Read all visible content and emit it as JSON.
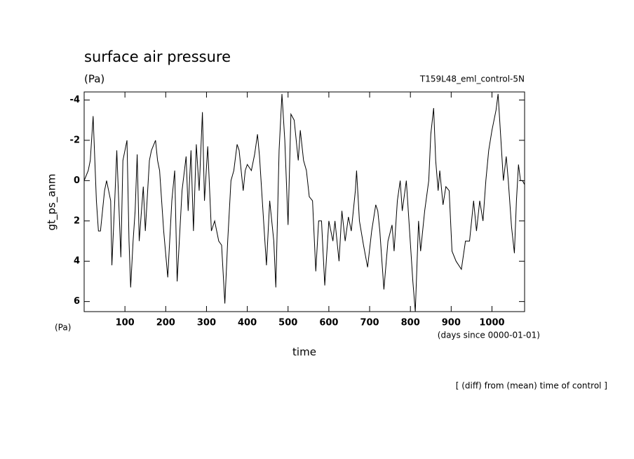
{
  "chart_data": {
    "type": "line",
    "title": "surface air pressure",
    "subtitle": "(Pa)",
    "experiment": "T159L48_eml_control-5N",
    "y_label": "gt_ps_anm",
    "y_units": "(Pa)",
    "x_label": "time",
    "x_units": "(days since 0000-01-01)",
    "footnote": "[ (diff) from (mean) time of control ]",
    "color": "#000000",
    "xlim": [
      0,
      1080
    ],
    "xticks": [
      100,
      200,
      300,
      400,
      500,
      600,
      700,
      800,
      900,
      1000
    ],
    "ylim": [
      6.5,
      -4.4
    ],
    "yticks": [
      -4,
      -2,
      0,
      2,
      4,
      6
    ],
    "x": [
      0,
      10,
      15,
      22,
      30,
      35,
      40,
      50,
      55,
      60,
      65,
      68,
      75,
      80,
      90,
      95,
      105,
      110,
      114,
      120,
      125,
      130,
      135,
      145,
      150,
      160,
      165,
      175,
      180,
      185,
      195,
      205,
      215,
      222,
      228,
      240,
      250,
      255,
      262,
      268,
      275,
      282,
      290,
      295,
      303,
      312,
      320,
      330,
      337,
      345,
      352,
      360,
      367,
      375,
      380,
      390,
      395,
      400,
      410,
      418,
      425,
      430,
      440,
      447,
      455,
      465,
      470,
      478,
      485,
      492,
      500,
      507,
      515,
      525,
      530,
      538,
      545,
      552,
      560,
      568,
      575,
      582,
      590,
      600,
      610,
      615,
      625,
      632,
      640,
      648,
      655,
      665,
      668,
      675,
      685,
      695,
      705,
      715,
      720,
      725,
      735,
      745,
      755,
      760,
      768,
      775,
      780,
      790,
      798,
      806,
      812,
      820,
      825,
      835,
      845,
      850,
      857,
      862,
      868,
      872,
      880,
      887,
      895,
      902,
      912,
      925,
      935,
      945,
      955,
      962,
      970,
      978,
      985,
      992,
      1000,
      1010,
      1015,
      1022,
      1028,
      1035,
      1040,
      1048,
      1055,
      1060,
      1065,
      1070,
      1075,
      1080
    ],
    "values": [
      0,
      -0.5,
      -1,
      -3.2,
      1,
      2.5,
      2.5,
      0.5,
      0,
      0.5,
      1,
      4.2,
      1,
      -1.5,
      3.8,
      -1,
      -2,
      3,
      5.3,
      3,
      1.5,
      -1.3,
      3,
      0.3,
      2.5,
      -1,
      -1.5,
      -2,
      -1,
      -0.5,
      2.5,
      4.8,
      1,
      -0.5,
      5,
      0.5,
      -1.2,
      1.5,
      -1.5,
      2.5,
      -1.8,
      0.5,
      -3.4,
      1,
      -1.7,
      2.5,
      2,
      3,
      3.2,
      6.1,
      3,
      0,
      -0.5,
      -1.8,
      -1.5,
      0.5,
      -0.5,
      -0.8,
      -0.5,
      -1.3,
      -2.3,
      -1.2,
      2,
      4.2,
      1,
      3,
      5.3,
      -1.5,
      -4.3,
      -2,
      2.2,
      -3.3,
      -3,
      -1,
      -2.5,
      -1,
      -0.5,
      0.8,
      1,
      4.5,
      2,
      2,
      5.2,
      2,
      3,
      2,
      4,
      1.5,
      3,
      1.8,
      2.5,
      0.5,
      -0.5,
      2,
      3.2,
      4.3,
      2.5,
      1.2,
      1.5,
      2.5,
      5.4,
      3,
      2.2,
      3.5,
      1,
      0,
      1.5,
      0,
      2.5,
      5,
      6.5,
      2,
      3.5,
      1.5,
      0,
      -2.3,
      -3.6,
      -1,
      0.5,
      -0.5,
      1.2,
      0.3,
      0.5,
      3.5,
      4,
      4.4,
      3,
      3,
      1,
      2.5,
      1,
      2,
      0,
      -1.5,
      -2.5,
      -3.5,
      -4.3,
      -2,
      0,
      -1.2,
      0,
      2.3,
      3.6,
      1,
      -0.8,
      0,
      0,
      0.2
    ]
  }
}
